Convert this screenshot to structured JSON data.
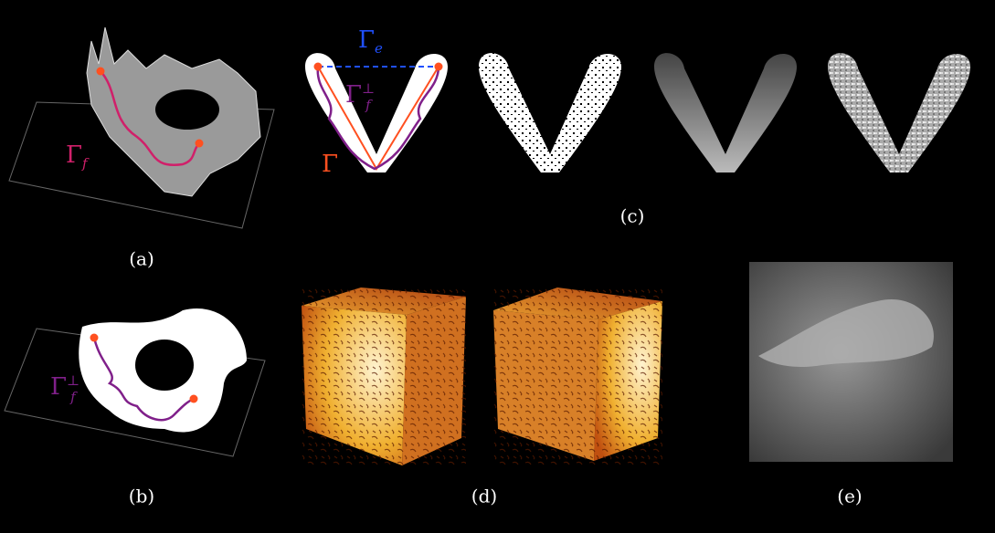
{
  "panels": [
    {
      "label": "(a)",
      "annotations": [
        {
          "symbol": "Γ",
          "subscript": "f"
        }
      ]
    },
    {
      "label": "(b)",
      "annotations": [
        {
          "symbol": "Γ",
          "subscript": "f",
          "superscript": "⊥"
        }
      ]
    },
    {
      "label": "(c)",
      "annotations": [
        {
          "symbol": "Γ",
          "subscript": "e"
        },
        {
          "symbol": "Γ",
          "subscript": "f",
          "superscript": "⊥"
        },
        {
          "symbol": "Γ"
        }
      ]
    },
    {
      "label": "(d)"
    },
    {
      "label": "(e)"
    }
  ]
}
